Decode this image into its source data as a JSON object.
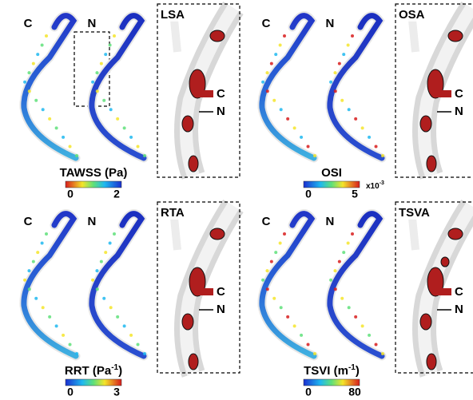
{
  "panels": [
    {
      "vessel_labels": [
        "C",
        "N"
      ],
      "scale": {
        "title": "TAWSS (Pa)",
        "min": "0",
        "max": "2"
      },
      "zoom": {
        "label": "LSA",
        "legend": [
          "C",
          "N"
        ]
      }
    },
    {
      "vessel_labels": [
        "C",
        "N"
      ],
      "scale": {
        "title": "OSI",
        "min": "0",
        "max": "5",
        "multiplier": {
          "base": "x10",
          "sup": "-3"
        }
      },
      "zoom": {
        "label": "OSA",
        "legend": [
          "C",
          "N"
        ]
      }
    },
    {
      "vessel_labels": [
        "C",
        "N"
      ],
      "scale": {
        "title": "RRT (Pa",
        "title_sup": "-1",
        "title_end": ")",
        "min": "0",
        "max": "3"
      },
      "zoom": {
        "label": "RTA",
        "legend": [
          "C",
          "N"
        ]
      }
    },
    {
      "vessel_labels": [
        "C",
        "N"
      ],
      "scale": {
        "title": "TSVI (m",
        "title_sup": "-1",
        "title_end": ")",
        "min": "0",
        "max": "80"
      },
      "zoom": {
        "label": "TSVA",
        "legend": [
          "C",
          "N"
        ]
      }
    }
  ]
}
